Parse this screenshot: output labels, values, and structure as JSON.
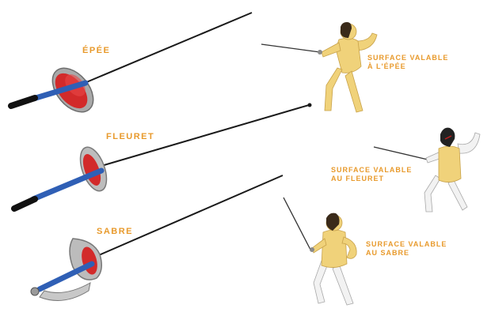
{
  "weapons": [
    {
      "name": "ÉPÉE",
      "surface_line1": "SURFACE VALABLE",
      "surface_line2": "À L'ÉPÉE"
    },
    {
      "name": "FLEURET",
      "surface_line1": "SURFACE VALABLE",
      "surface_line2": "AU FLEURET"
    },
    {
      "name": "SABRE",
      "surface_line1": "SURFACE VALABLE",
      "surface_line2": "AU SABRE"
    }
  ],
  "colors": {
    "label": "#e89a2c",
    "valid_surface": "#f0d27a",
    "non_valid_surface": "#f2f2f2",
    "grip": "#2f5fb5",
    "guard_inner": "#d22a2a",
    "guard_metal": "#b9b9b9",
    "blade": "#1a1a1a"
  }
}
